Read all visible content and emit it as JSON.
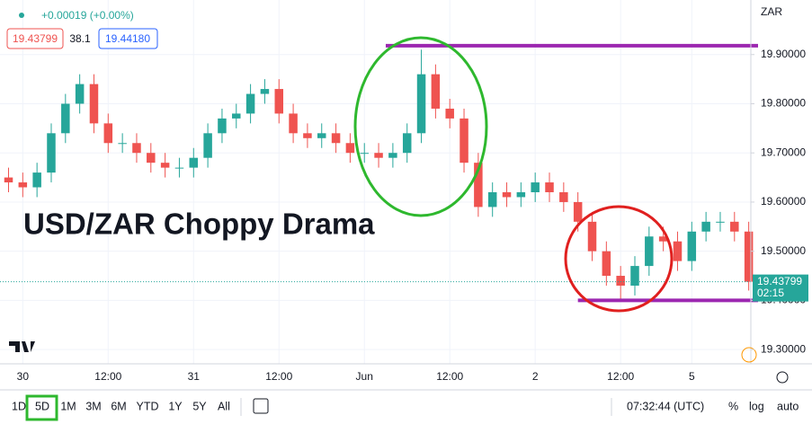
{
  "chart_data": {
    "type": "candlestick",
    "title": "USD/ZAR Choppy Drama",
    "up_color": "#26a69a",
    "down_color": "#ef5350",
    "grid": true,
    "x": [
      -2,
      0,
      2,
      4,
      6,
      8,
      10,
      12,
      14,
      16,
      18,
      20,
      22,
      24,
      26,
      28,
      30,
      32,
      34,
      36,
      38,
      40,
      42,
      44,
      46,
      48,
      50,
      52,
      54,
      56,
      58,
      60,
      62,
      64,
      66,
      68,
      70,
      72,
      74,
      76,
      78,
      80,
      82,
      84,
      86,
      88,
      90,
      92,
      94,
      96,
      98,
      100,
      102
    ],
    "open": [
      19.65,
      19.64,
      19.63,
      19.66,
      19.74,
      19.8,
      19.84,
      19.76,
      19.72,
      19.72,
      19.7,
      19.68,
      19.67,
      19.67,
      19.69,
      19.74,
      19.77,
      19.78,
      19.82,
      19.83,
      19.78,
      19.74,
      19.73,
      19.74,
      19.72,
      19.7,
      19.7,
      19.69,
      19.7,
      19.74,
      19.86,
      19.79,
      19.77,
      19.68,
      19.59,
      19.62,
      19.61,
      19.62,
      19.64,
      19.62,
      19.6,
      19.56,
      19.5,
      19.45,
      19.43,
      19.47,
      19.53,
      19.52,
      19.48,
      19.54,
      19.56,
      19.56,
      19.54
    ],
    "high": [
      19.67,
      19.66,
      19.68,
      19.76,
      19.82,
      19.86,
      19.86,
      19.78,
      19.74,
      19.74,
      19.72,
      19.7,
      19.69,
      19.71,
      19.76,
      19.79,
      19.8,
      19.84,
      19.85,
      19.85,
      19.8,
      19.76,
      19.76,
      19.76,
      19.74,
      19.72,
      19.72,
      19.72,
      19.76,
      19.91,
      19.88,
      19.81,
      19.79,
      19.7,
      19.64,
      19.64,
      19.64,
      19.66,
      19.66,
      19.64,
      19.62,
      19.58,
      19.52,
      19.47,
      19.49,
      19.55,
      19.55,
      19.54,
      19.56,
      19.58,
      19.58,
      19.58,
      19.56
    ],
    "low": [
      19.62,
      19.61,
      19.61,
      19.64,
      19.72,
      19.78,
      19.74,
      19.7,
      19.7,
      19.68,
      19.66,
      19.65,
      19.65,
      19.65,
      19.67,
      19.72,
      19.75,
      19.76,
      19.8,
      19.76,
      19.72,
      19.71,
      19.71,
      19.7,
      19.68,
      19.68,
      19.67,
      19.67,
      19.68,
      19.72,
      19.77,
      19.75,
      19.66,
      19.57,
      19.57,
      19.59,
      19.59,
      19.6,
      19.6,
      19.58,
      19.54,
      19.48,
      19.43,
      19.4,
      19.41,
      19.45,
      19.5,
      19.46,
      19.46,
      19.52,
      19.54,
      19.52,
      19.42
    ],
    "close": [
      19.64,
      19.63,
      19.66,
      19.74,
      19.8,
      19.84,
      19.76,
      19.72,
      19.72,
      19.7,
      19.68,
      19.67,
      19.67,
      19.69,
      19.74,
      19.77,
      19.78,
      19.82,
      19.83,
      19.78,
      19.74,
      19.73,
      19.74,
      19.72,
      19.7,
      19.7,
      19.69,
      19.7,
      19.74,
      19.86,
      19.79,
      19.77,
      19.68,
      19.59,
      19.62,
      19.61,
      19.62,
      19.64,
      19.62,
      19.6,
      19.56,
      19.5,
      19.45,
      19.43,
      19.47,
      19.53,
      19.52,
      19.48,
      19.54,
      19.56,
      19.56,
      19.54,
      19.43799
    ],
    "xlim": [
      -3.2,
      102.3
    ],
    "ylim": [
      19.271,
      20.011
    ],
    "xticks": [
      {
        "value": 0,
        "label": "30"
      },
      {
        "value": 12,
        "label": "12:00"
      },
      {
        "value": 24,
        "label": "31"
      },
      {
        "value": 36,
        "label": "12:00"
      },
      {
        "value": 48,
        "label": "Jun"
      },
      {
        "value": 60,
        "label": "12:00"
      },
      {
        "value": 72,
        "label": "2"
      },
      {
        "value": 84,
        "label": "12:00"
      },
      {
        "value": 94,
        "label": "5"
      }
    ],
    "yticks": [
      {
        "value": 19.3,
        "label": "19.30000"
      },
      {
        "value": 19.4,
        "label": "19.40000"
      },
      {
        "value": 19.5,
        "label": "19.50000"
      },
      {
        "value": 19.6,
        "label": "19.60000"
      },
      {
        "value": 19.7,
        "label": "19.70000"
      },
      {
        "value": 19.8,
        "label": "19.80000"
      },
      {
        "value": 19.9,
        "label": "19.90000"
      }
    ],
    "hlines": [
      {
        "y": 19.918,
        "from": 51,
        "color": "#9c27b0"
      },
      {
        "y": 19.4,
        "from": 78,
        "color": "#9c27b0"
      }
    ],
    "countdown": "02:15",
    "currency": "ZAR"
  },
  "header": {
    "change": "+0.00019 (+0.00%)",
    "bid": "19.43799",
    "spread": "38.1",
    "ask": "19.44180"
  },
  "toolbar": {
    "ranges": [
      "1D",
      "5D",
      "1M",
      "3M",
      "6M",
      "YTD",
      "1Y",
      "5Y",
      "All"
    ],
    "time": "07:32:44 (UTC)",
    "percent": "%",
    "log": "log",
    "auto": "auto"
  }
}
